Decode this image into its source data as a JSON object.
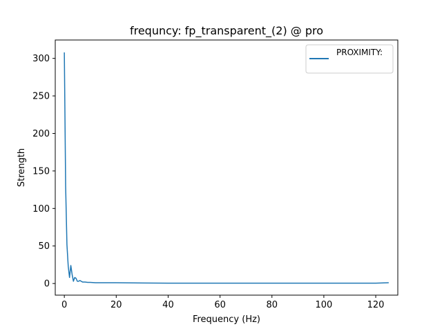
{
  "chart_data": {
    "type": "line",
    "title": "frequncy: fp_transparent_(2) @ pro",
    "xlabel": "Frequency (Hz)",
    "ylabel": "Strength",
    "xlim": [
      -3.5,
      128.5
    ],
    "ylim": [
      -15.5,
      324.5
    ],
    "xticks": [
      0,
      20,
      40,
      60,
      80,
      100,
      120
    ],
    "yticks": [
      0,
      50,
      100,
      150,
      200,
      250,
      300
    ],
    "grid": false,
    "legend_position": "top-right",
    "series": [
      {
        "name": "PROXIMITY:",
        "color": "#1f77b4",
        "x": [
          0,
          0.5,
          1.0,
          1.5,
          2.0,
          2.5,
          3.0,
          3.5,
          4.0,
          4.5,
          5.0,
          5.5,
          6.0,
          6.5,
          7.0,
          8.0,
          9.0,
          10.0,
          12.0,
          15.0,
          20.0,
          30.0,
          40.0,
          50.0,
          60.0,
          70.0,
          80.0,
          90.0,
          100.0,
          110.0,
          120.0,
          123.0,
          125.0
        ],
        "y": [
          308,
          130,
          52,
          23,
          8,
          24,
          12,
          3,
          8,
          7,
          3,
          3,
          4,
          3,
          2,
          2,
          1.5,
          1.5,
          1,
          1,
          1,
          0.7,
          0.5,
          0.5,
          0.5,
          0.5,
          0.5,
          0.5,
          0.5,
          0.5,
          0.5,
          0.8,
          1
        ]
      }
    ]
  }
}
